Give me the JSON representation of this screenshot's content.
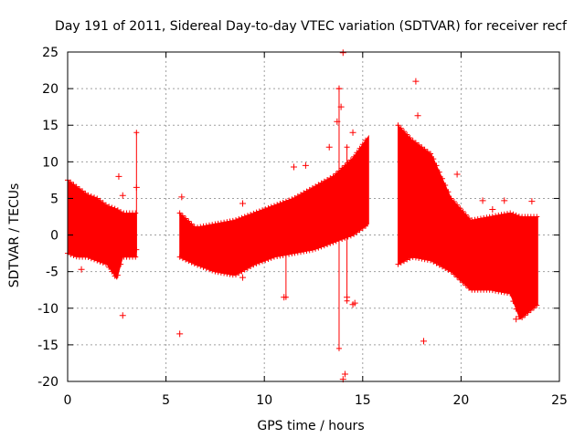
{
  "chart_data": {
    "type": "scatter",
    "title": "Day 191 of 2011, Sidereal Day-to-day VTEC variation (SDTVAR) for receiver recf",
    "xlabel": "GPS time / hours",
    "ylabel": "SDTVAR / TECUs",
    "xlim": [
      0,
      25
    ],
    "ylim": [
      -20,
      25
    ],
    "x_ticks": [
      "0",
      "5",
      "10",
      "15",
      "20",
      "25"
    ],
    "y_ticks": [
      "25",
      "20",
      "15",
      "10",
      "5",
      "0",
      "-5",
      "-10",
      "-15",
      "-20"
    ],
    "grid": true,
    "marker": "+",
    "color": "#ff0000",
    "series": [
      {
        "name": "SDTVAR",
        "bands": [
          {
            "x": [
              0.0,
              0.5,
              1.0,
              1.5,
              2.0,
              2.5,
              2.8,
              3.0,
              3.5
            ],
            "upper": [
              7.5,
              6.5,
              5.5,
              5.0,
              4.0,
              3.5,
              3.0,
              3.0,
              3.0
            ],
            "lower": [
              -2.5,
              -3.0,
              -3.0,
              -3.5,
              -4.0,
              -6.0,
              -3.0,
              -3.0,
              -3.0
            ]
          },
          {
            "x": [
              5.7,
              6.5,
              7.5,
              8.5,
              9.5,
              10.5,
              11.5,
              12.5,
              13.5,
              14.5,
              15.3
            ],
            "upper": [
              3.0,
              1.0,
              1.5,
              2.0,
              3.0,
              4.0,
              5.0,
              6.5,
              8.0,
              10.5,
              13.5
            ],
            "lower": [
              -3.0,
              -4.0,
              -5.0,
              -5.5,
              -4.0,
              -3.0,
              -2.5,
              -2.0,
              -1.0,
              0.0,
              1.5
            ]
          },
          {
            "x": [
              16.8,
              17.5,
              18.5,
              19.5,
              20.5,
              21.5,
              22.5,
              23.0,
              23.9
            ],
            "upper": [
              15.0,
              13.0,
              11.0,
              5.0,
              2.0,
              2.5,
              3.0,
              2.5,
              2.5
            ],
            "lower": [
              -4.0,
              -3.0,
              -3.5,
              -5.0,
              -7.5,
              -7.5,
              -8.0,
              -11.5,
              -9.5
            ]
          }
        ],
        "spikes": [
          {
            "x": 3.5,
            "low": -2.0,
            "high": 14.0
          },
          {
            "x": 11.1,
            "low": -8.5,
            "high": 0.0
          },
          {
            "x": 13.8,
            "low": -15.5,
            "high": 20.0
          },
          {
            "x": 14.2,
            "low": -9.0,
            "high": 12.0
          }
        ],
        "outliers": [
          {
            "x": 2.6,
            "y": 8.0
          },
          {
            "x": 2.8,
            "y": -11.0
          },
          {
            "x": 2.8,
            "y": 5.4
          },
          {
            "x": 3.5,
            "y": 6.5
          },
          {
            "x": 5.7,
            "y": -13.5
          },
          {
            "x": 5.8,
            "y": 5.2
          },
          {
            "x": 0.7,
            "y": -4.7
          },
          {
            "x": 8.9,
            "y": 4.3
          },
          {
            "x": 8.9,
            "y": -5.8
          },
          {
            "x": 11.0,
            "y": -8.5
          },
          {
            "x": 11.5,
            "y": 9.3
          },
          {
            "x": 12.1,
            "y": 9.5
          },
          {
            "x": 13.3,
            "y": 12.0
          },
          {
            "x": 13.7,
            "y": 15.5
          },
          {
            "x": 13.8,
            "y": 20.0
          },
          {
            "x": 13.9,
            "y": 17.5
          },
          {
            "x": 14.0,
            "y": 24.9
          },
          {
            "x": 14.1,
            "y": -19.0
          },
          {
            "x": 14.0,
            "y": -19.7
          },
          {
            "x": 14.2,
            "y": -8.5
          },
          {
            "x": 14.5,
            "y": -9.5
          },
          {
            "x": 14.6,
            "y": -9.3
          },
          {
            "x": 14.5,
            "y": 14.0
          },
          {
            "x": 17.3,
            "y": 13.0
          },
          {
            "x": 17.7,
            "y": 21.0
          },
          {
            "x": 17.8,
            "y": 16.3
          },
          {
            "x": 18.1,
            "y": -14.5
          },
          {
            "x": 19.8,
            "y": 8.3
          },
          {
            "x": 19.5,
            "y": 4.0
          },
          {
            "x": 20.0,
            "y": -4.0
          },
          {
            "x": 21.1,
            "y": 4.7
          },
          {
            "x": 21.6,
            "y": 3.5
          },
          {
            "x": 22.2,
            "y": 4.7
          },
          {
            "x": 22.8,
            "y": -11.5
          },
          {
            "x": 23.6,
            "y": 4.6
          }
        ]
      }
    ]
  }
}
